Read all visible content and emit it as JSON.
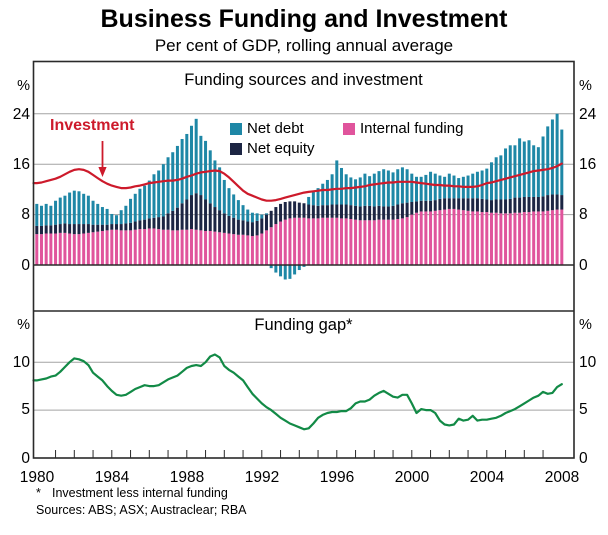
{
  "page": {
    "title": "Business Funding and Investment",
    "subtitle": "Per cent of GDP, rolling annual average",
    "footnote_marker": "*",
    "footnote_text": "Investment less internal funding",
    "sources": "Sources: ABS; ASX; Austraclear; RBA"
  },
  "colors": {
    "net_debt": "#1e87a6",
    "net_equity": "#1c2543",
    "internal_funding": "#e0549c",
    "investment": "#cd1a2b",
    "funding_gap": "#128a46",
    "gridline": "#a3a3a3",
    "axis": "#2a2a2a"
  },
  "x_axis": {
    "year_labels": [
      "1980",
      "1984",
      "1988",
      "1992",
      "1996",
      "2000",
      "2004",
      "2008"
    ],
    "minor_tick_interval_years": 1
  },
  "chart_data": [
    {
      "type": "bar",
      "title": "Funding sources and investment",
      "y_unit": "%",
      "ylim": [
        -7.4,
        32.3
      ],
      "yticks": [
        0,
        8,
        16,
        24
      ],
      "ytick_labels": [
        "24",
        "16",
        "8",
        "0"
      ],
      "x_start_year": 1980,
      "x_step_years": 0.25,
      "stacked": true,
      "grid": true,
      "legend_position": "top-inside",
      "legend": [
        {
          "label": "Net debt",
          "color_key": "net_debt"
        },
        {
          "label": "Net equity",
          "color_key": "net_equity"
        },
        {
          "label": "Internal funding",
          "color_key": "internal_funding"
        }
      ],
      "line_annotation": "Investment",
      "series": [
        {
          "name": "Internal funding",
          "type": "bar",
          "color_key": "internal_funding",
          "values": [
            4.9,
            4.9,
            5.0,
            5.0,
            5.0,
            5.1,
            5.1,
            5.0,
            4.9,
            4.9,
            5.0,
            5.1,
            5.2,
            5.3,
            5.4,
            5.5,
            5.6,
            5.6,
            5.5,
            5.5,
            5.5,
            5.6,
            5.7,
            5.7,
            5.8,
            5.8,
            5.7,
            5.6,
            5.6,
            5.5,
            5.5,
            5.6,
            5.6,
            5.7,
            5.6,
            5.5,
            5.4,
            5.4,
            5.3,
            5.2,
            5.1,
            5.0,
            4.9,
            4.8,
            4.8,
            4.7,
            4.6,
            4.7,
            5.0,
            5.5,
            6.0,
            6.5,
            6.9,
            7.2,
            7.4,
            7.5,
            7.5,
            7.5,
            7.4,
            7.4,
            7.4,
            7.5,
            7.5,
            7.5,
            7.5,
            7.4,
            7.4,
            7.3,
            7.2,
            7.1,
            7.1,
            7.1,
            7.1,
            7.2,
            7.2,
            7.2,
            7.2,
            7.3,
            7.4,
            7.6,
            8.0,
            8.3,
            8.5,
            8.5,
            8.5,
            8.6,
            8.7,
            8.8,
            8.9,
            8.9,
            8.8,
            8.7,
            8.6,
            8.5,
            8.5,
            8.4,
            8.4,
            8.3,
            8.3,
            8.2,
            8.2,
            8.2,
            8.3,
            8.3,
            8.4,
            8.4,
            8.5,
            8.5,
            8.5,
            8.6,
            8.7,
            8.8,
            8.8
          ]
        },
        {
          "name": "Net equity",
          "type": "bar",
          "color_key": "net_equity",
          "values": [
            1.3,
            1.3,
            1.3,
            1.3,
            1.4,
            1.4,
            1.5,
            1.5,
            1.6,
            1.6,
            1.5,
            1.4,
            1.2,
            1.1,
            1.0,
            0.9,
            0.9,
            0.9,
            1.0,
            1.1,
            1.2,
            1.3,
            1.4,
            1.5,
            1.6,
            1.7,
            1.9,
            2.1,
            2.6,
            3.1,
            3.6,
            4.2,
            4.8,
            5.4,
            5.8,
            5.6,
            5.0,
            4.4,
            3.9,
            3.5,
            3.1,
            2.8,
            2.6,
            2.4,
            2.3,
            2.2,
            2.2,
            2.3,
            2.4,
            2.5,
            2.6,
            2.7,
            2.8,
            2.8,
            2.7,
            2.6,
            2.4,
            2.3,
            2.2,
            2.1,
            2.0,
            2.0,
            2.0,
            2.1,
            2.1,
            2.2,
            2.2,
            2.2,
            2.2,
            2.2,
            2.3,
            2.3,
            2.2,
            2.2,
            2.1,
            2.1,
            2.2,
            2.3,
            2.4,
            2.3,
            2.0,
            1.8,
            1.7,
            1.7,
            1.7,
            1.7,
            1.8,
            1.8,
            1.7,
            1.7,
            1.8,
            1.9,
            2.0,
            2.1,
            2.1,
            2.1,
            2.0,
            2.0,
            2.1,
            2.2,
            2.2,
            2.3,
            2.4,
            2.4,
            2.4,
            2.4,
            2.3,
            2.3,
            2.4,
            2.5,
            2.5,
            2.4,
            2.3
          ]
        },
        {
          "name": "Net debt",
          "type": "bar",
          "color_key": "net_debt",
          "values": [
            3.5,
            3.2,
            3.4,
            3.1,
            3.8,
            4.2,
            4.4,
            5.0,
            5.3,
            5.2,
            4.8,
            4.5,
            3.8,
            3.3,
            2.8,
            2.5,
            1.6,
            1.4,
            2.2,
            2.8,
            3.8,
            4.4,
            5.0,
            5.4,
            6.0,
            6.9,
            7.4,
            8.3,
            8.9,
            9.3,
            9.8,
            10.2,
            10.4,
            11.0,
            11.8,
            9.4,
            9.3,
            8.4,
            7.4,
            6.8,
            5.3,
            4.4,
            3.7,
            3.1,
            2.4,
            1.9,
            1.5,
            1.2,
            0.6,
            0.2,
            -0.5,
            -1.2,
            -1.8,
            -2.3,
            -2.2,
            -1.5,
            -0.8,
            -0.3,
            1.2,
            2.1,
            2.8,
            3.4,
            4.0,
            4.8,
            7.0,
            5.8,
            4.8,
            4.4,
            4.2,
            4.6,
            5.1,
            4.7,
            5.2,
            5.5,
            5.9,
            5.7,
            5.3,
            5.6,
            5.7,
            5.3,
            4.5,
            3.9,
            3.8,
            4.1,
            4.6,
            4.2,
            3.7,
            3.4,
            3.9,
            3.6,
            3.2,
            3.4,
            3.6,
            3.9,
            4.2,
            4.5,
            4.9,
            6.0,
            6.7,
            7.0,
            8.1,
            8.5,
            8.3,
            9.4,
            8.8,
            9.0,
            8.2,
            7.9,
            9.5,
            10.9,
            11.9,
            12.8,
            10.4
          ]
        },
        {
          "name": "Investment",
          "type": "line",
          "color_key": "investment",
          "values": [
            13.0,
            13.1,
            13.3,
            13.5,
            13.7,
            14.0,
            14.4,
            14.8,
            15.1,
            15.2,
            15.1,
            14.8,
            14.3,
            13.8,
            13.3,
            12.9,
            12.6,
            12.4,
            12.2,
            12.2,
            12.3,
            12.5,
            12.6,
            12.8,
            13.0,
            13.1,
            13.2,
            13.3,
            13.4,
            13.4,
            13.5,
            13.7,
            14.0,
            14.2,
            14.5,
            14.7,
            14.8,
            14.9,
            15.0,
            14.9,
            14.5,
            13.9,
            13.2,
            12.5,
            11.8,
            11.3,
            11.0,
            10.7,
            10.4,
            10.2,
            10.2,
            10.3,
            10.5,
            10.7,
            10.9,
            11.1,
            11.3,
            11.5,
            11.6,
            11.7,
            11.8,
            11.9,
            11.9,
            12.0,
            12.1,
            12.1,
            12.2,
            12.2,
            12.3,
            12.4,
            12.5,
            12.7,
            12.8,
            12.9,
            13.0,
            13.1,
            13.1,
            13.2,
            13.2,
            13.2,
            13.2,
            13.1,
            13.0,
            12.9,
            12.8,
            12.7,
            12.7,
            12.6,
            12.6,
            12.5,
            12.5,
            12.4,
            12.4,
            12.4,
            12.5,
            12.7,
            13.0,
            13.1,
            13.3,
            13.5,
            13.7,
            13.9,
            14.1,
            14.3,
            14.5,
            14.7,
            14.9,
            15.0,
            15.1,
            15.2,
            15.4,
            15.7,
            16.1
          ]
        }
      ]
    },
    {
      "type": "line",
      "title": "Funding gap*",
      "y_unit": "%",
      "ylim": [
        0,
        15.3
      ],
      "yticks": [
        0,
        5,
        10
      ],
      "ytick_labels": [
        "10",
        "5",
        "0"
      ],
      "x_start_year": 1980,
      "x_step_years": 0.25,
      "grid": true,
      "series": [
        {
          "name": "Funding gap",
          "type": "line",
          "color_key": "funding_gap",
          "values": [
            8.1,
            8.2,
            8.3,
            8.5,
            8.6,
            9.0,
            9.5,
            10.0,
            10.4,
            10.3,
            10.1,
            9.7,
            8.9,
            8.5,
            8.1,
            7.5,
            7.0,
            6.6,
            6.5,
            6.6,
            6.9,
            7.2,
            7.4,
            7.6,
            7.5,
            7.5,
            7.6,
            7.9,
            8.2,
            8.4,
            8.6,
            9.0,
            9.4,
            9.6,
            9.7,
            9.6,
            10.0,
            10.6,
            10.8,
            10.5,
            9.6,
            9.2,
            8.9,
            8.5,
            8.1,
            7.4,
            6.7,
            6.2,
            5.7,
            5.3,
            5.0,
            4.6,
            4.2,
            3.9,
            3.6,
            3.4,
            3.2,
            3.0,
            3.1,
            3.6,
            4.2,
            4.5,
            4.7,
            4.8,
            4.8,
            4.9,
            4.9,
            5.2,
            5.7,
            5.9,
            5.9,
            6.1,
            6.5,
            6.8,
            7.0,
            6.7,
            6.4,
            6.3,
            6.6,
            6.6,
            5.7,
            4.7,
            5.1,
            5.0,
            5.0,
            4.7,
            3.9,
            3.5,
            3.4,
            3.5,
            4.1,
            3.9,
            4.0,
            4.4,
            3.9,
            4.0,
            4.0,
            4.1,
            4.2,
            4.4,
            4.7,
            4.9,
            5.1,
            5.4,
            5.7,
            6.0,
            6.3,
            6.5,
            6.9,
            6.7,
            6.8,
            7.4,
            7.7
          ]
        }
      ]
    }
  ]
}
